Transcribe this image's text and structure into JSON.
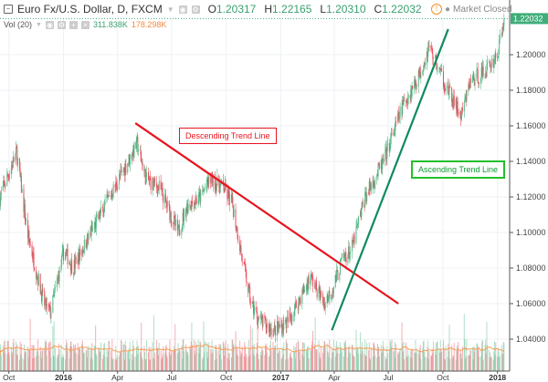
{
  "header": {
    "symbol": "Euro Fx/U.S. Dollar, D, FXCM",
    "o_label": "O",
    "o": "1.20317",
    "h_label": "H",
    "h": "1.22165",
    "l_label": "L",
    "l": "1.20310",
    "c_label": "C",
    "c": "1.22032",
    "market_status": "Market Closed"
  },
  "volume_header": {
    "label": "Vol (20)",
    "vol": "311.838K",
    "vol_ma": "178.298K"
  },
  "colors": {
    "up": "#53b987",
    "down": "#eb4d5c",
    "vol_ma": "#f5a05a",
    "descending": "#e8141e",
    "ascending": "#0f8a5f",
    "last_price": "#3fae7a"
  },
  "chart_data": {
    "type": "candlestick",
    "last_price": "1.22032",
    "y_ticks": [
      "1.20000",
      "1.18000",
      "1.16000",
      "1.14000",
      "1.12000",
      "1.10000",
      "1.08000",
      "1.06000",
      "1.04000"
    ],
    "x_ticks": [
      {
        "label": "Oct",
        "date": "2015-10-01"
      },
      {
        "label": "2016",
        "date": "2016-01-01"
      },
      {
        "label": "Apr",
        "date": "2016-04-01"
      },
      {
        "label": "Jul",
        "date": "2016-07-01"
      },
      {
        "label": "Oct",
        "date": "2016-10-01"
      },
      {
        "label": "2017",
        "date": "2017-01-01"
      },
      {
        "label": "Apr",
        "date": "2017-04-01"
      },
      {
        "label": "Jul",
        "date": "2017-07-01"
      },
      {
        "label": "Oct",
        "date": "2017-10-01"
      },
      {
        "label": "2018",
        "date": "2018-01-01"
      }
    ],
    "price_path": [
      [
        "2015-09-16",
        1.12
      ],
      [
        "2015-10-14",
        1.145
      ],
      [
        "2015-11-01",
        1.1
      ],
      [
        "2015-11-29",
        1.06
      ],
      [
        "2015-12-10",
        1.055
      ],
      [
        "2016-01-02",
        1.09
      ],
      [
        "2016-01-17",
        1.08
      ],
      [
        "2016-02-01",
        1.09
      ],
      [
        "2016-03-03",
        1.11
      ],
      [
        "2016-04-11",
        1.135
      ],
      [
        "2016-05-04",
        1.15
      ],
      [
        "2016-05-19",
        1.13
      ],
      [
        "2016-06-11",
        1.125
      ],
      [
        "2016-07-12",
        1.1
      ],
      [
        "2016-07-27",
        1.115
      ],
      [
        "2016-08-19",
        1.12
      ],
      [
        "2016-09-04",
        1.13
      ],
      [
        "2016-09-27",
        1.125
      ],
      [
        "2016-10-12",
        1.115
      ],
      [
        "2016-10-28",
        1.085
      ],
      [
        "2016-11-12",
        1.06
      ],
      [
        "2016-11-27",
        1.05
      ],
      [
        "2016-12-21",
        1.045
      ],
      [
        "2017-01-13",
        1.05
      ],
      [
        "2017-02-05",
        1.065
      ],
      [
        "2017-02-20",
        1.075
      ],
      [
        "2017-03-15",
        1.06
      ],
      [
        "2017-03-31",
        1.07
      ],
      [
        "2017-04-15",
        1.085
      ],
      [
        "2017-04-30",
        1.09
      ],
      [
        "2017-05-23",
        1.12
      ],
      [
        "2017-06-23",
        1.14
      ],
      [
        "2017-07-24",
        1.17
      ],
      [
        "2017-08-24",
        1.19
      ],
      [
        "2017-09-08",
        1.205
      ],
      [
        "2017-09-20",
        1.195
      ],
      [
        "2017-10-09",
        1.18
      ],
      [
        "2017-11-01",
        1.165
      ],
      [
        "2017-11-16",
        1.185
      ],
      [
        "2017-12-09",
        1.19
      ],
      [
        "2018-01-01",
        1.2
      ],
      [
        "2018-01-12",
        1.22032
      ]
    ],
    "trend_lines": [
      {
        "label": "Descending Trend Line",
        "from": [
          "2016-05-01",
          1.1615
        ],
        "to": [
          "2017-07-18",
          1.06
        ],
        "color": "#e8141e"
      },
      {
        "label": "Ascending Trend Line",
        "from": [
          "2017-03-28",
          1.045
        ],
        "to": [
          "2017-10-10",
          1.2144
        ],
        "color": "#0f8a5f"
      }
    ]
  }
}
